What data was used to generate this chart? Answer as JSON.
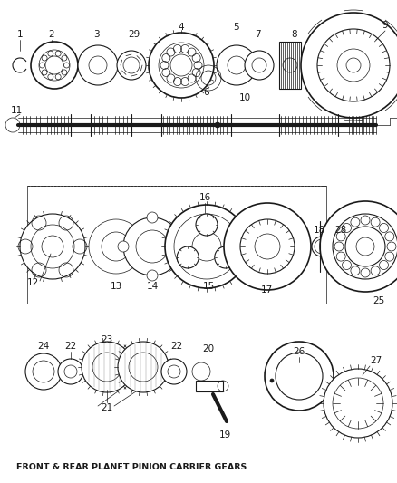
{
  "title": "FRONT & REAR PLANET PINION CARRIER GEARS",
  "bg_color": "#ffffff",
  "line_color": "#1a1a1a",
  "fig_width": 4.38,
  "fig_height": 5.33,
  "dpi": 100
}
